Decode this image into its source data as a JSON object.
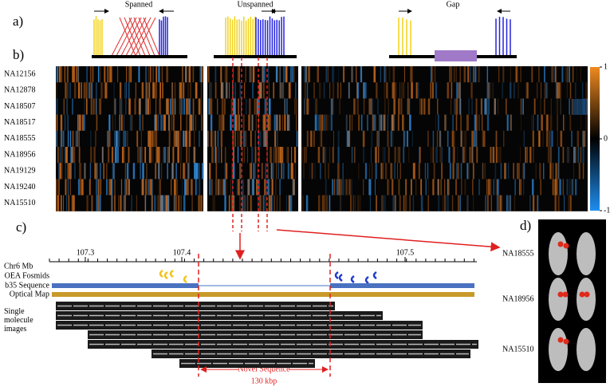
{
  "panels": {
    "a": {
      "label": "a)",
      "diagrams": [
        "Spanned",
        "Unspanned",
        "Gap"
      ]
    },
    "b": {
      "label": "b)",
      "samples": [
        "NA12156",
        "NA12878",
        "NA18507",
        "NA18517",
        "NA18555",
        "NA18956",
        "NA19129",
        "NA19240",
        "NA15510"
      ],
      "colorbar_ticks": [
        1,
        0,
        -1
      ]
    },
    "c": {
      "label": "c)",
      "axis_label": "Chr6 Mb",
      "ticks": [
        107.3,
        107.4,
        107.5
      ],
      "tracks": [
        "OEA Fosmids",
        "b35 Sequence",
        "Optical Map",
        "Single molecule images"
      ],
      "annotation": "Novel Sequence",
      "annotation_size": "130 kbp"
    },
    "d": {
      "label": "d)",
      "samples": [
        "NA18555",
        "NA18956",
        "NA15510"
      ]
    }
  }
}
